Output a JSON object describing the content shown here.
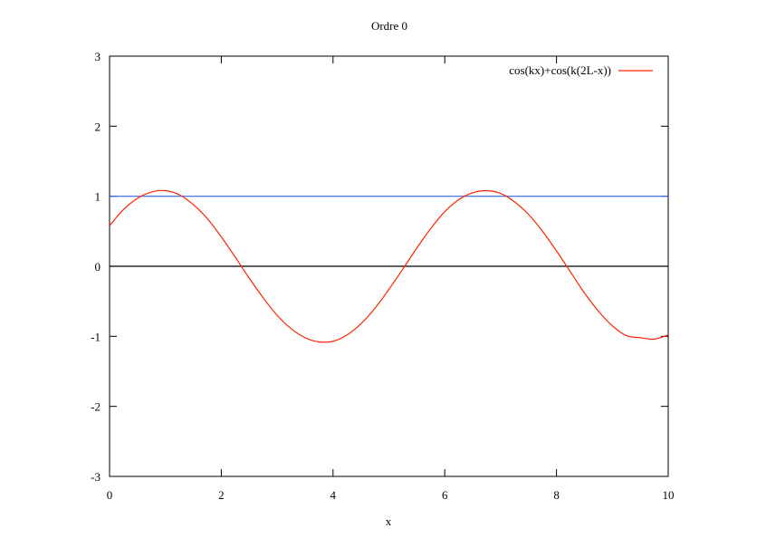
{
  "chart_data": {
    "type": "line",
    "title": "Ordre 0",
    "xlabel": "x",
    "ylabel": "",
    "xlim": [
      0,
      10
    ],
    "ylim": [
      -3,
      3
    ],
    "xticks": [
      0,
      2,
      4,
      6,
      8,
      10
    ],
    "yticks": [
      -3,
      -2,
      -1,
      0,
      1,
      2,
      3
    ],
    "xtick_labels": [
      "0",
      "2",
      "4",
      "6",
      "8",
      "10"
    ],
    "ytick_labels": [
      "-3",
      "-2",
      "-1",
      "0",
      "1",
      "2",
      "3"
    ],
    "grid": false,
    "legend_position": "top-right",
    "series": [
      {
        "name": "cos(kx)+cos(k(2L-x))",
        "color": "#ff2200",
        "x": [
          0,
          0.25,
          0.5,
          0.75,
          1,
          1.25,
          1.5,
          1.75,
          2,
          2.25,
          2.5,
          2.75,
          3,
          3.25,
          3.5,
          3.75,
          4,
          4.25,
          4.5,
          4.75,
          5,
          5.25,
          5.5,
          5.75,
          6,
          6.25,
          6.5,
          6.75,
          7,
          7.25,
          7.5,
          7.75,
          8,
          8.25,
          8.5,
          8.75,
          9,
          9.25,
          9.5,
          9.75,
          10
        ],
        "y": [
          0.58,
          0.81,
          0.97,
          1.06,
          1.08,
          1.02,
          0.88,
          0.68,
          0.42,
          0.13,
          -0.17,
          -0.45,
          -0.7,
          -0.89,
          -1.02,
          -1.08,
          -1.07,
          -0.98,
          -0.82,
          -0.6,
          -0.33,
          -0.04,
          0.26,
          0.54,
          0.78,
          0.95,
          1.05,
          1.08,
          1.04,
          0.92,
          0.74,
          0.5,
          0.22,
          -0.08,
          -0.38,
          -0.64,
          -0.85,
          -0.99,
          -1.02,
          -1.04,
          -0.98
        ]
      },
      {
        "name": "",
        "color": "#3366dd",
        "x": [
          0,
          10
        ],
        "y": [
          1,
          1
        ]
      },
      {
        "name": "",
        "color": "#000000",
        "x": [
          0,
          10
        ],
        "y": [
          0,
          0
        ]
      }
    ]
  }
}
